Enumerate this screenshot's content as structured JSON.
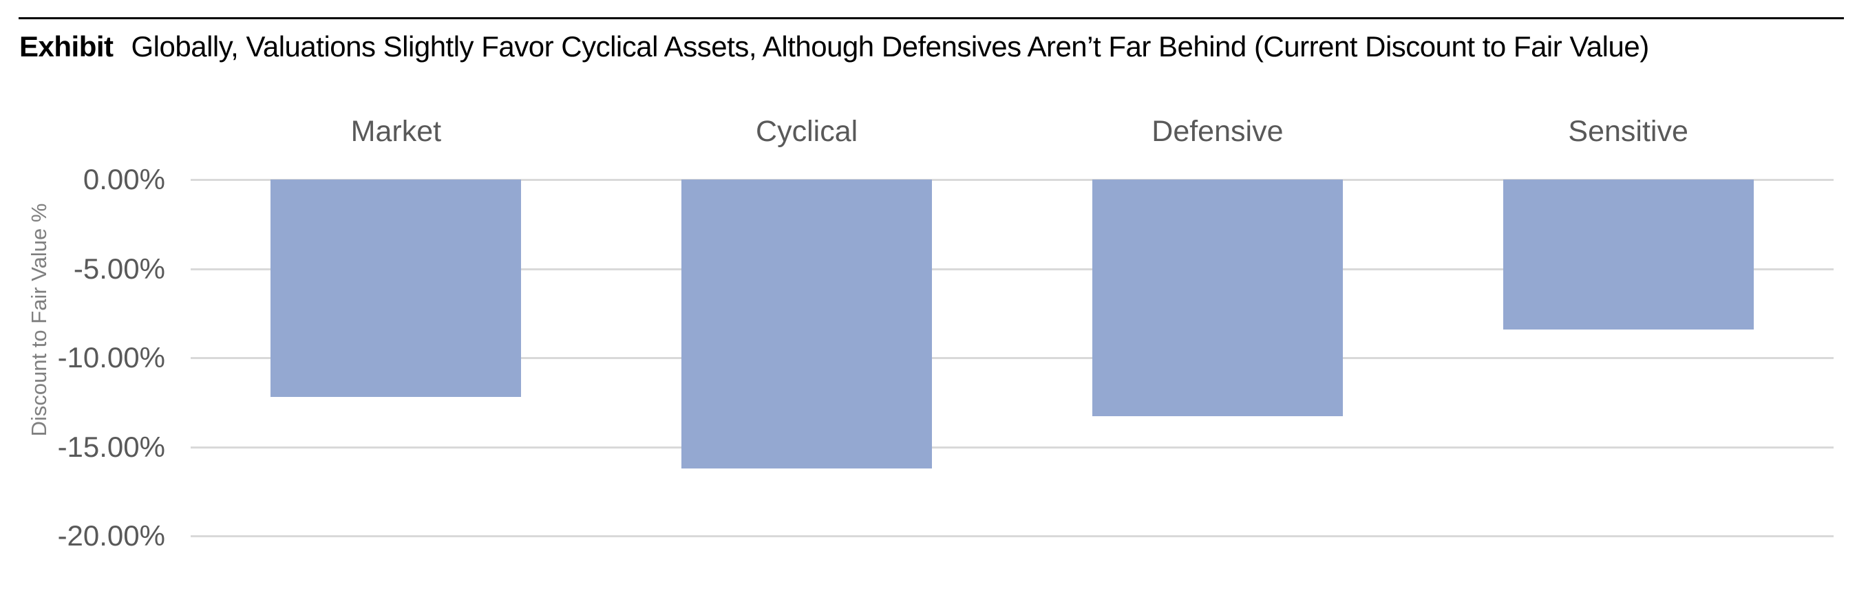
{
  "header": {
    "title_prefix": "Exhibit",
    "title_text": "Globally, Valuations Slightly Favor Cyclical Assets, Although Defensives Aren’t Far Behind (Current Discount to Fair Value)"
  },
  "chart_data": {
    "type": "bar",
    "title": "Globally, Valuations Slightly Favor Cyclical Assets, Although Defensives Aren’t Far Behind (Current Discount to Fair Value)",
    "categories": [
      "Market",
      "Cyclical",
      "Defensive",
      "Sensitive"
    ],
    "values": [
      -12.2,
      -16.2,
      -13.3,
      -8.4
    ],
    "xlabel": "",
    "ylabel": "Discount to Fair Value %",
    "ylim": [
      -20,
      0
    ],
    "yticks": [
      0,
      -5,
      -10,
      -15,
      -20
    ],
    "ytick_labels": [
      "0.00%",
      "-5.00%",
      "-10.00%",
      "-15.00%",
      "-20.00%"
    ],
    "grid": true,
    "legend": false,
    "category_labels_position": "top",
    "bar_color": "#94A8D1",
    "gridline_color": "#d9d9d9",
    "tick_label_color": "#595959",
    "category_label_color": "#595959",
    "ylabel_color": "#7f7f7f"
  }
}
